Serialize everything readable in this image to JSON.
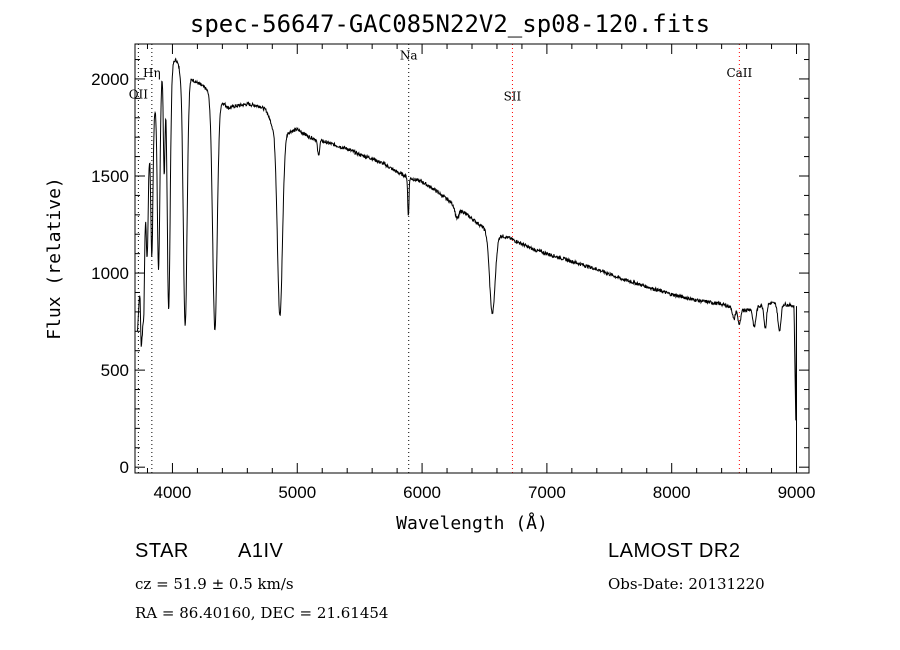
{
  "title": "spec-56647-GAC085N22V2_sp08-120.fits",
  "chart_data": {
    "type": "line",
    "xlabel": "Wavelength (Å)",
    "ylabel": "Flux (relative)",
    "xlim": [
      3700,
      9100
    ],
    "ylim": [
      -30,
      2180
    ],
    "x_ticks": [
      4000,
      5000,
      6000,
      7000,
      8000,
      9000
    ],
    "y_ticks": [
      0,
      500,
      1000,
      1500,
      2000
    ],
    "grid": false,
    "line_color": "#000000",
    "marker_color": "#ff0000",
    "continuum": [
      [
        3720,
        700
      ],
      [
        3740,
        950
      ],
      [
        3760,
        800
      ],
      [
        3780,
        1300
      ],
      [
        3800,
        1500
      ],
      [
        3820,
        1650
      ],
      [
        3840,
        1700
      ],
      [
        3860,
        1850
      ],
      [
        3880,
        1900
      ],
      [
        3900,
        1950
      ],
      [
        3920,
        2050
      ],
      [
        3950,
        2100
      ],
      [
        3980,
        2120
      ],
      [
        4000,
        2080
      ],
      [
        4030,
        2100
      ],
      [
        4060,
        2050
      ],
      [
        4100,
        2030
      ],
      [
        4150,
        2000
      ],
      [
        4200,
        1980
      ],
      [
        4250,
        1960
      ],
      [
        4300,
        1930
      ],
      [
        4400,
        1880
      ],
      [
        4450,
        1850
      ],
      [
        4500,
        1860
      ],
      [
        4600,
        1870
      ],
      [
        4700,
        1860
      ],
      [
        4750,
        1840
      ],
      [
        4800,
        1760
      ],
      [
        4900,
        1720
      ],
      [
        5000,
        1740
      ],
      [
        5100,
        1700
      ],
      [
        5200,
        1680
      ],
      [
        5300,
        1660
      ],
      [
        5400,
        1640
      ],
      [
        5500,
        1610
      ],
      [
        5600,
        1590
      ],
      [
        5700,
        1560
      ],
      [
        5800,
        1520
      ],
      [
        5900,
        1490
      ],
      [
        6000,
        1470
      ],
      [
        6100,
        1430
      ],
      [
        6200,
        1380
      ],
      [
        6300,
        1330
      ],
      [
        6400,
        1280
      ],
      [
        6500,
        1230
      ],
      [
        6600,
        1200
      ],
      [
        6700,
        1180
      ],
      [
        6800,
        1150
      ],
      [
        6900,
        1120
      ],
      [
        7000,
        1100
      ],
      [
        7200,
        1060
      ],
      [
        7400,
        1020
      ],
      [
        7600,
        970
      ],
      [
        7800,
        930
      ],
      [
        8000,
        890
      ],
      [
        8200,
        860
      ],
      [
        8400,
        840
      ],
      [
        8500,
        820
      ],
      [
        8600,
        810
      ],
      [
        8700,
        830
      ],
      [
        8800,
        845
      ],
      [
        8900,
        840
      ],
      [
        8980,
        830
      ],
      [
        9000,
        0
      ]
    ],
    "absorption_lines": [
      {
        "x": 3750,
        "depth": 250,
        "width": 6
      },
      {
        "x": 3771,
        "depth": 280,
        "width": 6
      },
      {
        "x": 3798,
        "depth": 400,
        "width": 7
      },
      {
        "x": 3835,
        "depth": 600,
        "width": 8
      },
      {
        "x": 3889,
        "depth": 900,
        "width": 10
      },
      {
        "x": 3934,
        "depth": 550,
        "width": 7
      },
      {
        "x": 3970,
        "depth": 1300,
        "width": 12
      },
      {
        "x": 4102,
        "depth": 1300,
        "width": 15
      },
      {
        "x": 4340,
        "depth": 1200,
        "width": 18
      },
      {
        "x": 4861,
        "depth": 960,
        "width": 20
      },
      {
        "x": 5170,
        "depth": 80,
        "width": 8
      },
      {
        "x": 5890,
        "depth": 200,
        "width": 5
      },
      {
        "x": 6280,
        "depth": 60,
        "width": 15
      },
      {
        "x": 6563,
        "depth": 420,
        "width": 22
      },
      {
        "x": 8498,
        "depth": 60,
        "width": 10
      },
      {
        "x": 8542,
        "depth": 80,
        "width": 12
      },
      {
        "x": 8662,
        "depth": 100,
        "width": 12
      },
      {
        "x": 8750,
        "depth": 120,
        "width": 10
      },
      {
        "x": 8863,
        "depth": 140,
        "width": 12
      }
    ],
    "line_markers": [
      {
        "label": "OII",
        "x": 3727,
        "color": "#000000",
        "label_y": 1900
      },
      {
        "label": "Hη",
        "x": 3835,
        "color": "#000000",
        "label_y": 2010
      },
      {
        "label": "Na",
        "x": 5893,
        "color": "#000000",
        "label_y": 2100
      },
      {
        "label": "SII",
        "x": 6724,
        "color": "#ff0000",
        "label_y": 1890
      },
      {
        "label": "CaII",
        "x": 8542,
        "color": "#ff0000",
        "label_y": 2010
      }
    ]
  },
  "info": {
    "class": "STAR",
    "subclass": "A1IV",
    "survey": "LAMOST DR2",
    "cz": "cz = 51.9 ± 0.5 km/s",
    "obsdate": "Obs-Date: 20131220",
    "radec": "RA =  86.40160, DEC =  21.61454"
  }
}
